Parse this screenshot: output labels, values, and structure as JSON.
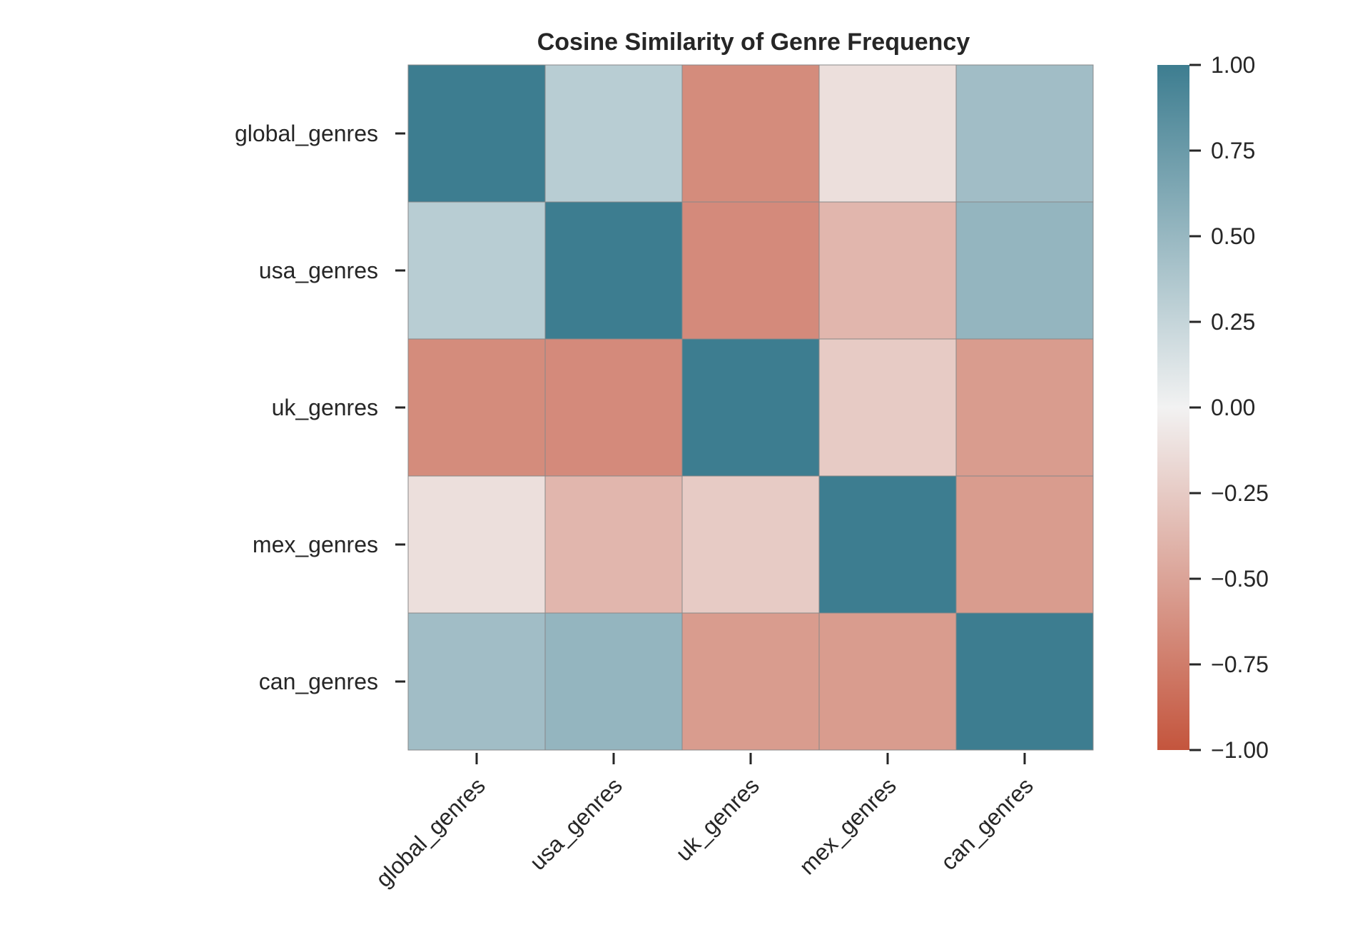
{
  "chart_data": {
    "type": "heatmap",
    "title": "Cosine Similarity of Genre Frequency",
    "xlabel": "",
    "ylabel": "",
    "rows": [
      "global_genres",
      "usa_genres",
      "uk_genres",
      "mex_genres",
      "can_genres"
    ],
    "columns": [
      "global_genres",
      "usa_genres",
      "uk_genres",
      "mex_genres",
      "can_genres"
    ],
    "values": [
      [
        1.0,
        0.32,
        -0.65,
        -0.12,
        0.45
      ],
      [
        0.32,
        1.0,
        -0.66,
        -0.38,
        0.52
      ],
      [
        -0.65,
        -0.66,
        1.0,
        -0.25,
        -0.55
      ],
      [
        -0.12,
        -0.38,
        -0.25,
        1.0,
        -0.55
      ],
      [
        0.45,
        0.52,
        -0.55,
        -0.55,
        1.0
      ]
    ],
    "colorbar": {
      "vmin": -1.0,
      "vmax": 1.0,
      "ticks": [
        1.0,
        0.75,
        0.5,
        0.25,
        0.0,
        -0.25,
        -0.5,
        -0.75,
        -1.0
      ],
      "tick_labels": [
        "1.00",
        "0.75",
        "0.50",
        "0.25",
        "0.00",
        "−0.25",
        "−0.50",
        "−0.75",
        "−1.00"
      ],
      "colormap": "diverging",
      "color_negative": "#c4553d",
      "color_center": "#f2f2f2",
      "color_positive": "#3d7d90"
    },
    "grid": false,
    "cell_border_color": "#888888"
  }
}
